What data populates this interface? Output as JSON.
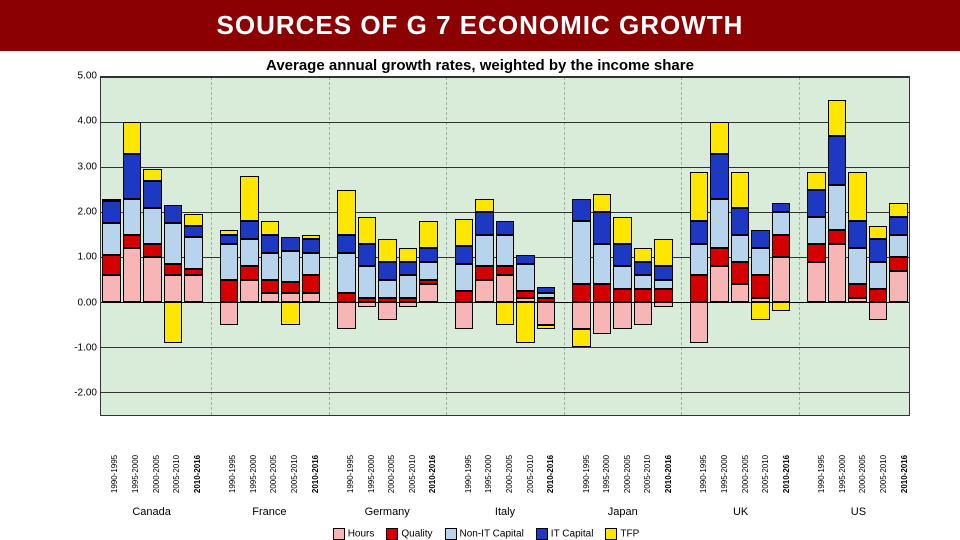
{
  "title": "SOURCES OF G 7 ECONOMIC GROWTH",
  "subtitle": "Average annual growth rates, weighted by the income share",
  "chart": {
    "type": "stacked-bar",
    "ylim": [
      -2.5,
      5.0
    ],
    "yticks": [
      -2.0,
      -1.0,
      0.0,
      1.0,
      2.0,
      3.0,
      4.0,
      5.0
    ],
    "ytick_fmt": "2dp",
    "background_color": "#d9ecd9",
    "grid_color": "#333333",
    "periods": [
      "1990-1995",
      "1995-2000",
      "2000-2005",
      "2005-2010",
      "2010-2016"
    ],
    "bold_period_index": 4,
    "countries": [
      "Canada",
      "France",
      "Germany",
      "Italy",
      "Japan",
      "UK",
      "US"
    ],
    "series": [
      {
        "key": "Hours",
        "color": "#f7b5b5",
        "label": "Hours"
      },
      {
        "key": "Quality",
        "color": "#d40000",
        "label": "Quality"
      },
      {
        "key": "NonIT",
        "color": "#b8d4ec",
        "label": "Non-IT Capital"
      },
      {
        "key": "IT",
        "color": "#1d39c4",
        "label": "IT Capital"
      },
      {
        "key": "TFP",
        "color": "#ffe600",
        "label": "TFP"
      }
    ],
    "data": {
      "Canada": [
        {
          "Hours": 0.6,
          "Quality": 0.45,
          "NonIT": 0.7,
          "IT": 0.5,
          "TFP": 0.05
        },
        {
          "Hours": 1.2,
          "Quality": 0.3,
          "NonIT": 0.8,
          "IT": 1.0,
          "TFP": 0.7
        },
        {
          "Hours": 1.0,
          "Quality": 0.3,
          "NonIT": 0.8,
          "IT": 0.6,
          "TFP": 0.25
        },
        {
          "Hours": 0.6,
          "Quality": 0.25,
          "NonIT": 0.9,
          "IT": 0.4,
          "TFP": -0.9
        },
        {
          "Hours": 0.6,
          "Quality": 0.15,
          "NonIT": 0.7,
          "IT": 0.25,
          "TFP": 0.25
        }
      ],
      "France": [
        {
          "Hours": -0.5,
          "Quality": 0.5,
          "NonIT": 0.8,
          "IT": 0.2,
          "TFP": 0.1
        },
        {
          "Hours": 0.5,
          "Quality": 0.3,
          "NonIT": 0.6,
          "IT": 0.4,
          "TFP": 1.0
        },
        {
          "Hours": 0.2,
          "Quality": 0.3,
          "NonIT": 0.6,
          "IT": 0.4,
          "TFP": 0.3
        },
        {
          "Hours": 0.2,
          "Quality": 0.25,
          "NonIT": 0.7,
          "IT": 0.3,
          "TFP": -0.5
        },
        {
          "Hours": 0.2,
          "Quality": 0.4,
          "NonIT": 0.5,
          "IT": 0.3,
          "TFP": 0.1
        }
      ],
      "Germany": [
        {
          "Hours": -0.6,
          "Quality": 0.2,
          "NonIT": 0.9,
          "IT": 0.4,
          "TFP": 1.0
        },
        {
          "Hours": -0.1,
          "Quality": 0.1,
          "NonIT": 0.7,
          "IT": 0.5,
          "TFP": 0.6
        },
        {
          "Hours": -0.4,
          "Quality": 0.1,
          "NonIT": 0.4,
          "IT": 0.4,
          "TFP": 0.5
        },
        {
          "Hours": -0.1,
          "Quality": 0.1,
          "NonIT": 0.5,
          "IT": 0.3,
          "TFP": 0.3
        },
        {
          "Hours": 0.4,
          "Quality": 0.1,
          "NonIT": 0.4,
          "IT": 0.3,
          "TFP": 0.6
        }
      ],
      "Italy": [
        {
          "Hours": -0.6,
          "Quality": 0.25,
          "NonIT": 0.6,
          "IT": 0.4,
          "TFP": 0.6
        },
        {
          "Hours": 0.5,
          "Quality": 0.3,
          "NonIT": 0.7,
          "IT": 0.5,
          "TFP": 0.3
        },
        {
          "Hours": 0.6,
          "Quality": 0.2,
          "NonIT": 0.7,
          "IT": 0.3,
          "TFP": -0.5
        },
        {
          "Hours": 0.1,
          "Quality": 0.15,
          "NonIT": 0.6,
          "IT": 0.2,
          "TFP": -0.9
        },
        {
          "Hours": -0.5,
          "Quality": 0.1,
          "NonIT": 0.1,
          "IT": 0.15,
          "TFP": -0.1
        }
      ],
      "Japan": [
        {
          "Hours": -0.6,
          "Quality": 0.4,
          "NonIT": 1.4,
          "IT": 0.5,
          "TFP": -0.4
        },
        {
          "Hours": -0.7,
          "Quality": 0.4,
          "NonIT": 0.9,
          "IT": 0.7,
          "TFP": 0.4
        },
        {
          "Hours": -0.6,
          "Quality": 0.3,
          "NonIT": 0.5,
          "IT": 0.5,
          "TFP": 0.6
        },
        {
          "Hours": -0.5,
          "Quality": 0.3,
          "NonIT": 0.3,
          "IT": 0.3,
          "TFP": 0.3
        },
        {
          "Hours": -0.1,
          "Quality": 0.3,
          "NonIT": 0.2,
          "IT": 0.3,
          "TFP": 0.6
        }
      ],
      "UK": [
        {
          "Hours": -0.9,
          "Quality": 0.6,
          "NonIT": 0.7,
          "IT": 0.5,
          "TFP": 1.1
        },
        {
          "Hours": 0.8,
          "Quality": 0.4,
          "NonIT": 1.1,
          "IT": 1.0,
          "TFP": 0.7
        },
        {
          "Hours": 0.4,
          "Quality": 0.5,
          "NonIT": 0.6,
          "IT": 0.6,
          "TFP": 0.8
        },
        {
          "Hours": 0.1,
          "Quality": 0.5,
          "NonIT": 0.6,
          "IT": 0.4,
          "TFP": -0.4
        },
        {
          "Hours": 1.0,
          "Quality": 0.5,
          "NonIT": 0.5,
          "IT": 0.2,
          "TFP": -0.2
        }
      ],
      "US": [
        {
          "Hours": 0.9,
          "Quality": 0.4,
          "NonIT": 0.6,
          "IT": 0.6,
          "TFP": 0.4
        },
        {
          "Hours": 1.3,
          "Quality": 0.3,
          "NonIT": 1.0,
          "IT": 1.1,
          "TFP": 0.8
        },
        {
          "Hours": 0.1,
          "Quality": 0.3,
          "NonIT": 0.8,
          "IT": 0.6,
          "TFP": 1.1
        },
        {
          "Hours": -0.4,
          "Quality": 0.3,
          "NonIT": 0.6,
          "IT": 0.5,
          "TFP": 0.3
        },
        {
          "Hours": 0.7,
          "Quality": 0.3,
          "NonIT": 0.5,
          "IT": 0.4,
          "TFP": 0.3
        }
      ]
    }
  },
  "legend_labels": {
    "Hours": "Hours",
    "Quality": "Quality",
    "NonIT": "Non-IT Capital",
    "IT": "IT Capital",
    "TFP": "TFP"
  }
}
